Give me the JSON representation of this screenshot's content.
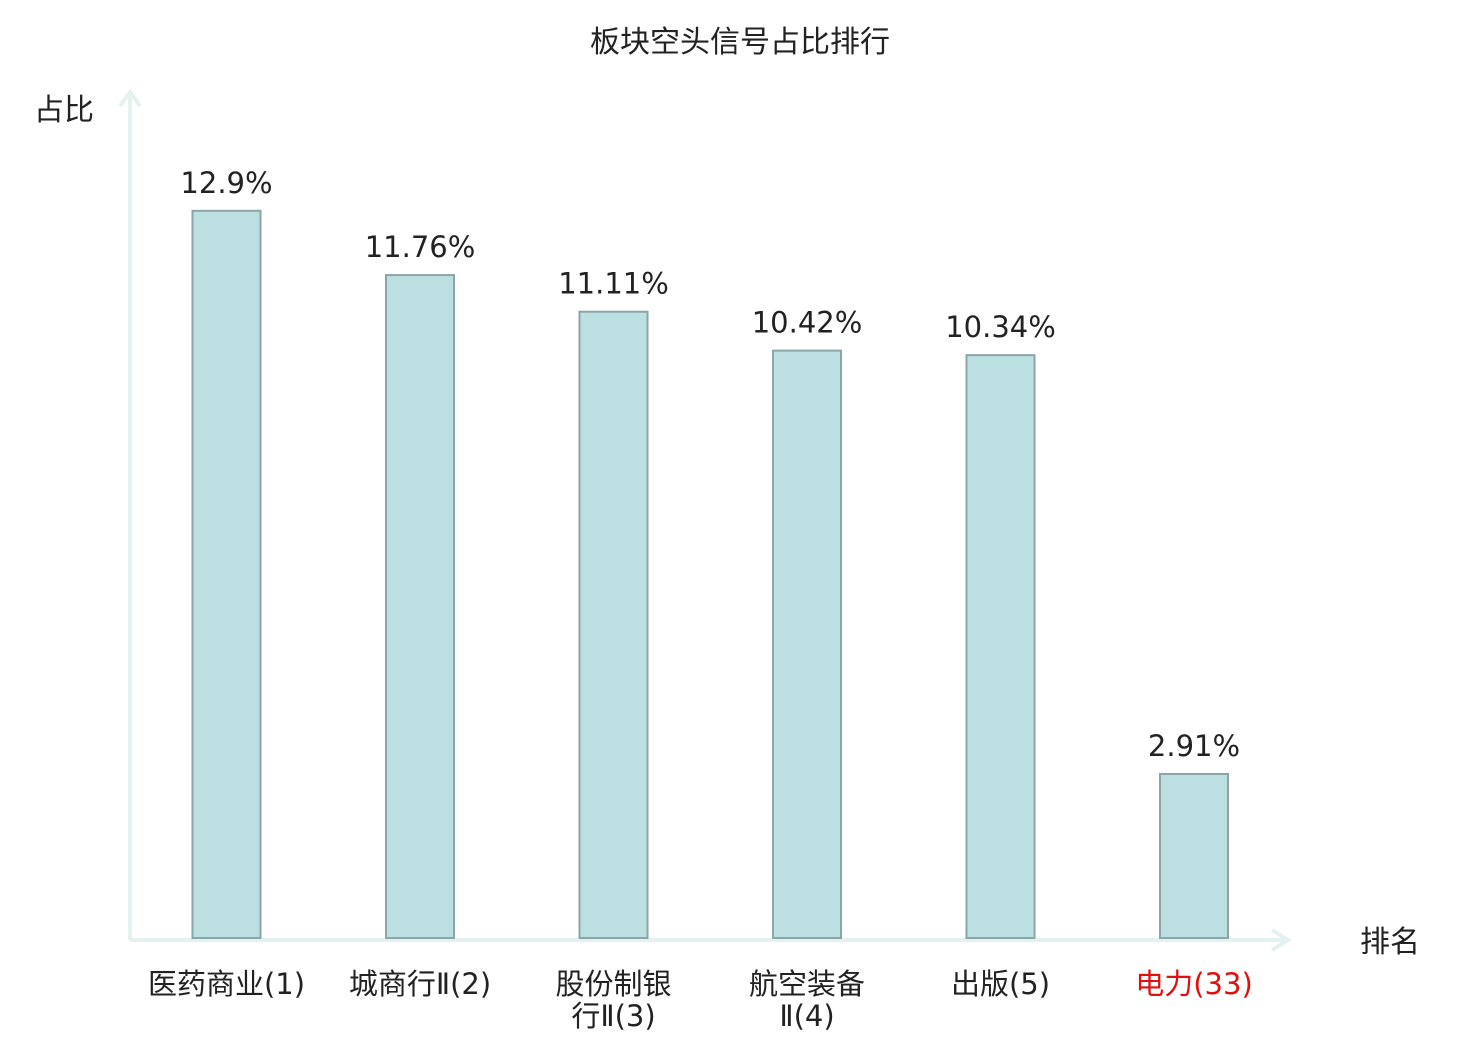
{
  "chart_data": {
    "type": "bar",
    "title": "板块空头信号占比排行",
    "ylabel": "占比",
    "xlabel": "排名",
    "categories": [
      {
        "lines": [
          "医药商业(1)"
        ],
        "highlight": false
      },
      {
        "lines": [
          "城商行Ⅱ(2)"
        ],
        "highlight": false
      },
      {
        "lines": [
          "股份制银",
          "行Ⅱ(3)"
        ],
        "highlight": false
      },
      {
        "lines": [
          "航空装备",
          "Ⅱ(4)"
        ],
        "highlight": false
      },
      {
        "lines": [
          "出版(5)"
        ],
        "highlight": false
      },
      {
        "lines": [
          "电力(33)"
        ],
        "highlight": true
      }
    ],
    "values": [
      12.9,
      11.76,
      11.11,
      10.42,
      10.34,
      2.91
    ],
    "value_labels": [
      "12.9%",
      "11.76%",
      "11.11%",
      "10.42%",
      "10.34%",
      "2.91%"
    ],
    "ylim": [
      0,
      14.44
    ],
    "grid": false,
    "colors": {
      "bar_fill": "#bce0e2",
      "bar_stroke": "#8aa6a8",
      "axis": "#e3f2f0",
      "text": "#222222",
      "highlight_text": "#e01010"
    }
  }
}
